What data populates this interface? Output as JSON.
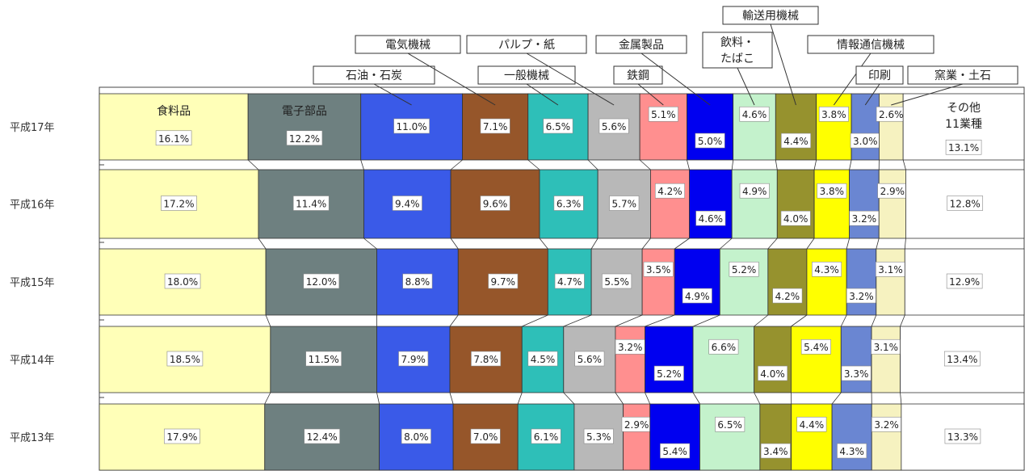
{
  "chart_data": {
    "type": "bar",
    "orientation": "horizontal-stacked-100",
    "title": "",
    "xlabel": "",
    "ylabel": "",
    "categories": [
      "平成17年",
      "平成16年",
      "平成15年",
      "平成14年",
      "平成13年"
    ],
    "series": [
      {
        "name": "食料品",
        "color": "#ffffb8",
        "values": [
          16.1,
          17.2,
          18.0,
          18.5,
          17.9
        ]
      },
      {
        "name": "電子部品",
        "color": "#6e8080",
        "values": [
          12.2,
          11.4,
          12.0,
          11.5,
          12.4
        ]
      },
      {
        "name": "石油・石炭",
        "color": "#3a5ae8",
        "values": [
          11.0,
          9.4,
          8.8,
          7.9,
          8.0
        ]
      },
      {
        "name": "電気機械",
        "color": "#96562a",
        "values": [
          7.1,
          9.6,
          9.7,
          7.8,
          7.0
        ]
      },
      {
        "name": "一般機械",
        "color": "#2ebfb8",
        "values": [
          6.5,
          6.3,
          4.7,
          4.5,
          6.1
        ]
      },
      {
        "name": "パルプ・紙",
        "color": "#b8b8b8",
        "values": [
          5.6,
          5.7,
          5.5,
          5.6,
          5.3
        ]
      },
      {
        "name": "鉄鋼",
        "color": "#ff8f8f",
        "values": [
          5.1,
          4.2,
          3.5,
          3.2,
          2.9
        ]
      },
      {
        "name": "金属製品",
        "color": "#0000f0",
        "values": [
          5.0,
          4.6,
          4.9,
          5.2,
          5.4
        ]
      },
      {
        "name": "飲料・たばこ",
        "color": "#c4f2cc",
        "values": [
          4.6,
          4.9,
          5.2,
          6.6,
          6.5
        ]
      },
      {
        "name": "輸送用機械",
        "color": "#96922e",
        "values": [
          4.4,
          4.0,
          4.2,
          4.0,
          3.4
        ]
      },
      {
        "name": "情報通信機械",
        "color": "#ffff00",
        "values": [
          3.8,
          3.8,
          4.3,
          5.4,
          4.4
        ]
      },
      {
        "name": "印刷",
        "color": "#6a86d2",
        "values": [
          3.0,
          3.2,
          3.2,
          3.3,
          4.3
        ]
      },
      {
        "name": "窯業・土石",
        "color": "#f6f2c0",
        "values": [
          2.6,
          2.9,
          3.1,
          3.1,
          3.2
        ]
      },
      {
        "name": "その他11業種",
        "color": "#ffffff",
        "values": [
          13.1,
          12.8,
          12.9,
          13.4,
          13.3
        ]
      }
    ],
    "labels": [
      [
        "16.1%",
        "12.2%",
        "11.0%",
        "7.1%",
        "6.5%",
        "5.6%",
        "5.1%",
        "5.0%",
        "4.6%",
        "4.4%",
        "3.8%",
        "3.0%",
        "2.6%",
        "13.1%"
      ],
      [
        "17.2%",
        "11.4%",
        "9.4%",
        "9.6%",
        "6.3%",
        "5.7%",
        "4.2%",
        "4.6%",
        "4.9%",
        "4.0%",
        "3.8%",
        "3.2%",
        "2.9%",
        "12.8%"
      ],
      [
        "18.0%",
        "12.0%",
        "8.8%",
        "9.7%",
        "4.7%",
        "5.5%",
        "3.5%",
        "4.9%",
        "5.2%",
        "4.2%",
        "4.3%",
        "3.2%",
        "3.1%",
        "12.9%"
      ],
      [
        "18.5%",
        "11.5%",
        "7.9%",
        "7.8%",
        "4.5%",
        "5.6%",
        "3.2%",
        "5.2%",
        "6.6%",
        "4.0%",
        "5.4%",
        "3.3%",
        "3.1%",
        "13.4%"
      ],
      [
        "17.9%",
        "12.4%",
        "8.0%",
        "7.0%",
        "6.1%",
        "5.3%",
        "2.9%",
        "5.4%",
        "6.5%",
        "3.4%",
        "4.4%",
        "4.3%",
        "3.2%",
        "13.3%"
      ]
    ],
    "legend_placement": "top",
    "legend_labels": [
      "石油・石炭",
      "電気機械",
      "一般機械",
      "パルプ・紙",
      "鉄鋼",
      "金属製品",
      "飲料・たばこ",
      "輸送用機械",
      "情報通信機械",
      "印刷",
      "窯業・土石"
    ],
    "top_row_inside_names": {
      "食料品": "食料品",
      "電子部品": "電子部品",
      "その他": "その他",
      "その他_sub": "11業種"
    },
    "grid": false
  }
}
